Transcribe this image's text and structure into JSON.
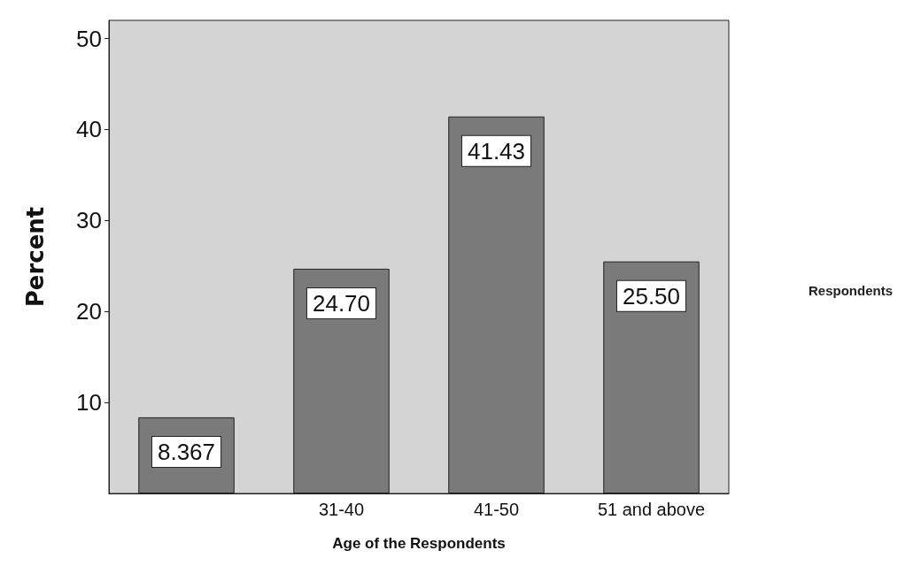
{
  "chart_data": {
    "type": "bar",
    "xlabel": "Age of the Respondents",
    "ylabel": "Percent",
    "categories": [
      null,
      "31-40",
      "41-50",
      "51 and above"
    ],
    "series": [
      {
        "name": "Respondents",
        "color": "#7a7a7a",
        "values": [
          8.367,
          24.7,
          41.43,
          25.5
        ]
      }
    ],
    "value_labels": [
      "8.367",
      "24.70",
      "41.43",
      "25.50"
    ],
    "ylim": [
      0,
      52
    ],
    "yticks": [
      10,
      20,
      30,
      40,
      50
    ],
    "grid": false,
    "legend": "right"
  }
}
